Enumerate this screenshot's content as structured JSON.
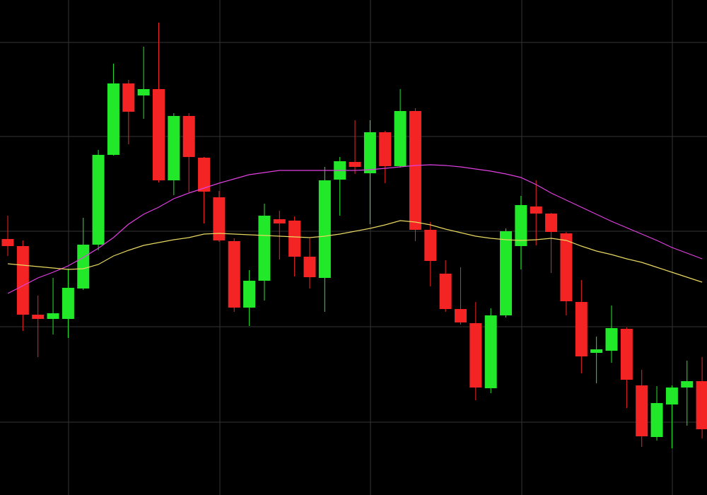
{
  "chart_data": {
    "type": "candlestick",
    "categories": [
      null,
      null,
      null,
      null,
      null,
      null,
      null,
      null,
      null,
      null,
      null,
      null,
      null,
      null,
      null,
      null,
      null,
      null,
      null,
      null,
      null,
      null,
      null,
      null,
      null,
      null,
      null,
      null,
      null,
      null,
      null,
      null,
      null,
      null,
      null,
      null,
      null,
      null,
      null,
      null,
      null,
      null,
      null,
      null,
      null,
      null,
      null
    ],
    "open": [
      362,
      352,
      255,
      249,
      249,
      292,
      354,
      481,
      582,
      565,
      574,
      445,
      536,
      477,
      421,
      359,
      265,
      303,
      390,
      388,
      337,
      307,
      446,
      471,
      455,
      513,
      465,
      543,
      375,
      313,
      263,
      243,
      151,
      254,
      352,
      408,
      398,
      370,
      273,
      201,
      204,
      235,
      155,
      82,
      128,
      152,
      161
    ],
    "high": [
      395,
      360,
      282,
      307,
      320,
      392,
      488,
      610,
      587,
      634,
      668,
      540,
      540,
      478,
      430,
      363,
      318,
      412,
      402,
      394,
      363,
      464,
      478,
      530,
      530,
      515,
      574,
      547,
      386,
      332,
      322,
      273,
      264,
      377,
      423,
      445,
      399,
      372,
      304,
      224,
      268,
      237,
      177,
      154,
      155,
      190,
      195
    ],
    "low": [
      338,
      232,
      195,
      227,
      222,
      290,
      346,
      480,
      496,
      532,
      442,
      424,
      428,
      384,
      358,
      259,
      239,
      275,
      333,
      309,
      292,
      259,
      395,
      454,
      383,
      441,
      463,
      359,
      295,
      259,
      241,
      134,
      144,
      251,
      319,
      353,
      314,
      254,
      172,
      158,
      187,
      123,
      68,
      77,
      66,
      98,
      80
    ],
    "close": [
      352,
      255,
      249,
      257,
      293,
      354,
      481,
      582,
      542,
      574,
      445,
      536,
      478,
      429,
      360,
      265,
      303,
      395,
      384,
      337,
      308,
      445,
      472,
      464,
      513,
      465,
      543,
      375,
      331,
      263,
      244,
      152,
      254,
      373,
      410,
      398,
      372,
      274,
      196,
      206,
      236,
      163,
      83,
      130,
      152,
      161,
      93
    ],
    "up_color": "#22e82a",
    "down_color": "#f52424",
    "series": [
      {
        "color": "#e040e0",
        "values": [
          285,
          296,
          307,
          315,
          324,
          336,
          349,
          364,
          383,
          397,
          407,
          419,
          427,
          434,
          441,
          447,
          453,
          456,
          459,
          459,
          459,
          459,
          459,
          459,
          460,
          462,
          464,
          466,
          467,
          466,
          464,
          461,
          458,
          454,
          449,
          439,
          427,
          417,
          407,
          397,
          387,
          378,
          369,
          360,
          350,
          342,
          334
        ]
      },
      {
        "color": "#e8d860",
        "values": [
          327,
          325,
          323,
          321,
          319,
          320,
          326,
          338,
          346,
          353,
          357,
          361,
          364,
          369,
          370,
          369,
          368,
          367,
          366,
          365,
          364,
          366,
          369,
          373,
          377,
          382,
          388,
          386,
          382,
          376,
          371,
          366,
          363,
          361,
          360,
          361,
          363,
          360,
          352,
          345,
          340,
          334,
          329,
          322,
          315,
          308,
          301
        ]
      }
    ],
    "ylim": [
      0,
      700
    ],
    "yticks": [
      103,
      238,
      373,
      507,
      640
    ],
    "grid": true
  }
}
